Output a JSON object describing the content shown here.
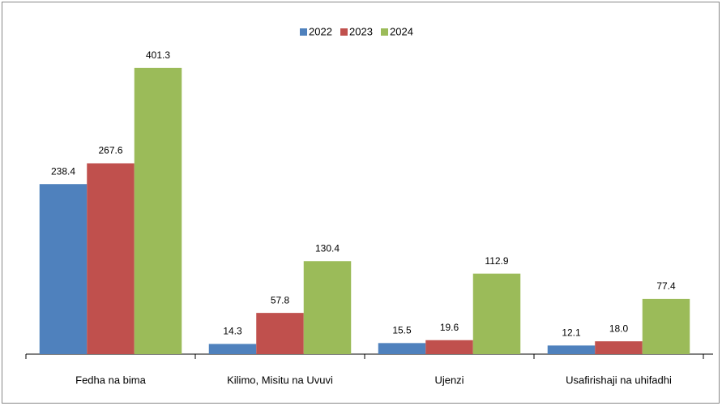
{
  "chart_data": {
    "type": "bar",
    "categories": [
      "Fedha na bima",
      "Kilimo, Misitu na Uvuvi",
      "Ujenzi",
      "Usafirishaji na uhifadhi"
    ],
    "series": [
      {
        "name": "2022",
        "color": "#4f81bd",
        "values": [
          238.4,
          14.3,
          15.5,
          12.1
        ],
        "value_labels": [
          "238.4",
          "14.3",
          "15.5",
          "12.1"
        ]
      },
      {
        "name": "2023",
        "color": "#c0504d",
        "values": [
          267.6,
          57.8,
          19.6,
          18.0
        ],
        "value_labels": [
          "267.6",
          "57.8",
          "19.6",
          "18.0"
        ]
      },
      {
        "name": "2024",
        "color": "#9bbb59",
        "values": [
          401.3,
          130.4,
          112.9,
          77.4
        ],
        "value_labels": [
          "401.3",
          "130.4",
          "112.9",
          "77.4"
        ]
      }
    ],
    "ylim": [
      0,
      450
    ],
    "legend": "top"
  }
}
